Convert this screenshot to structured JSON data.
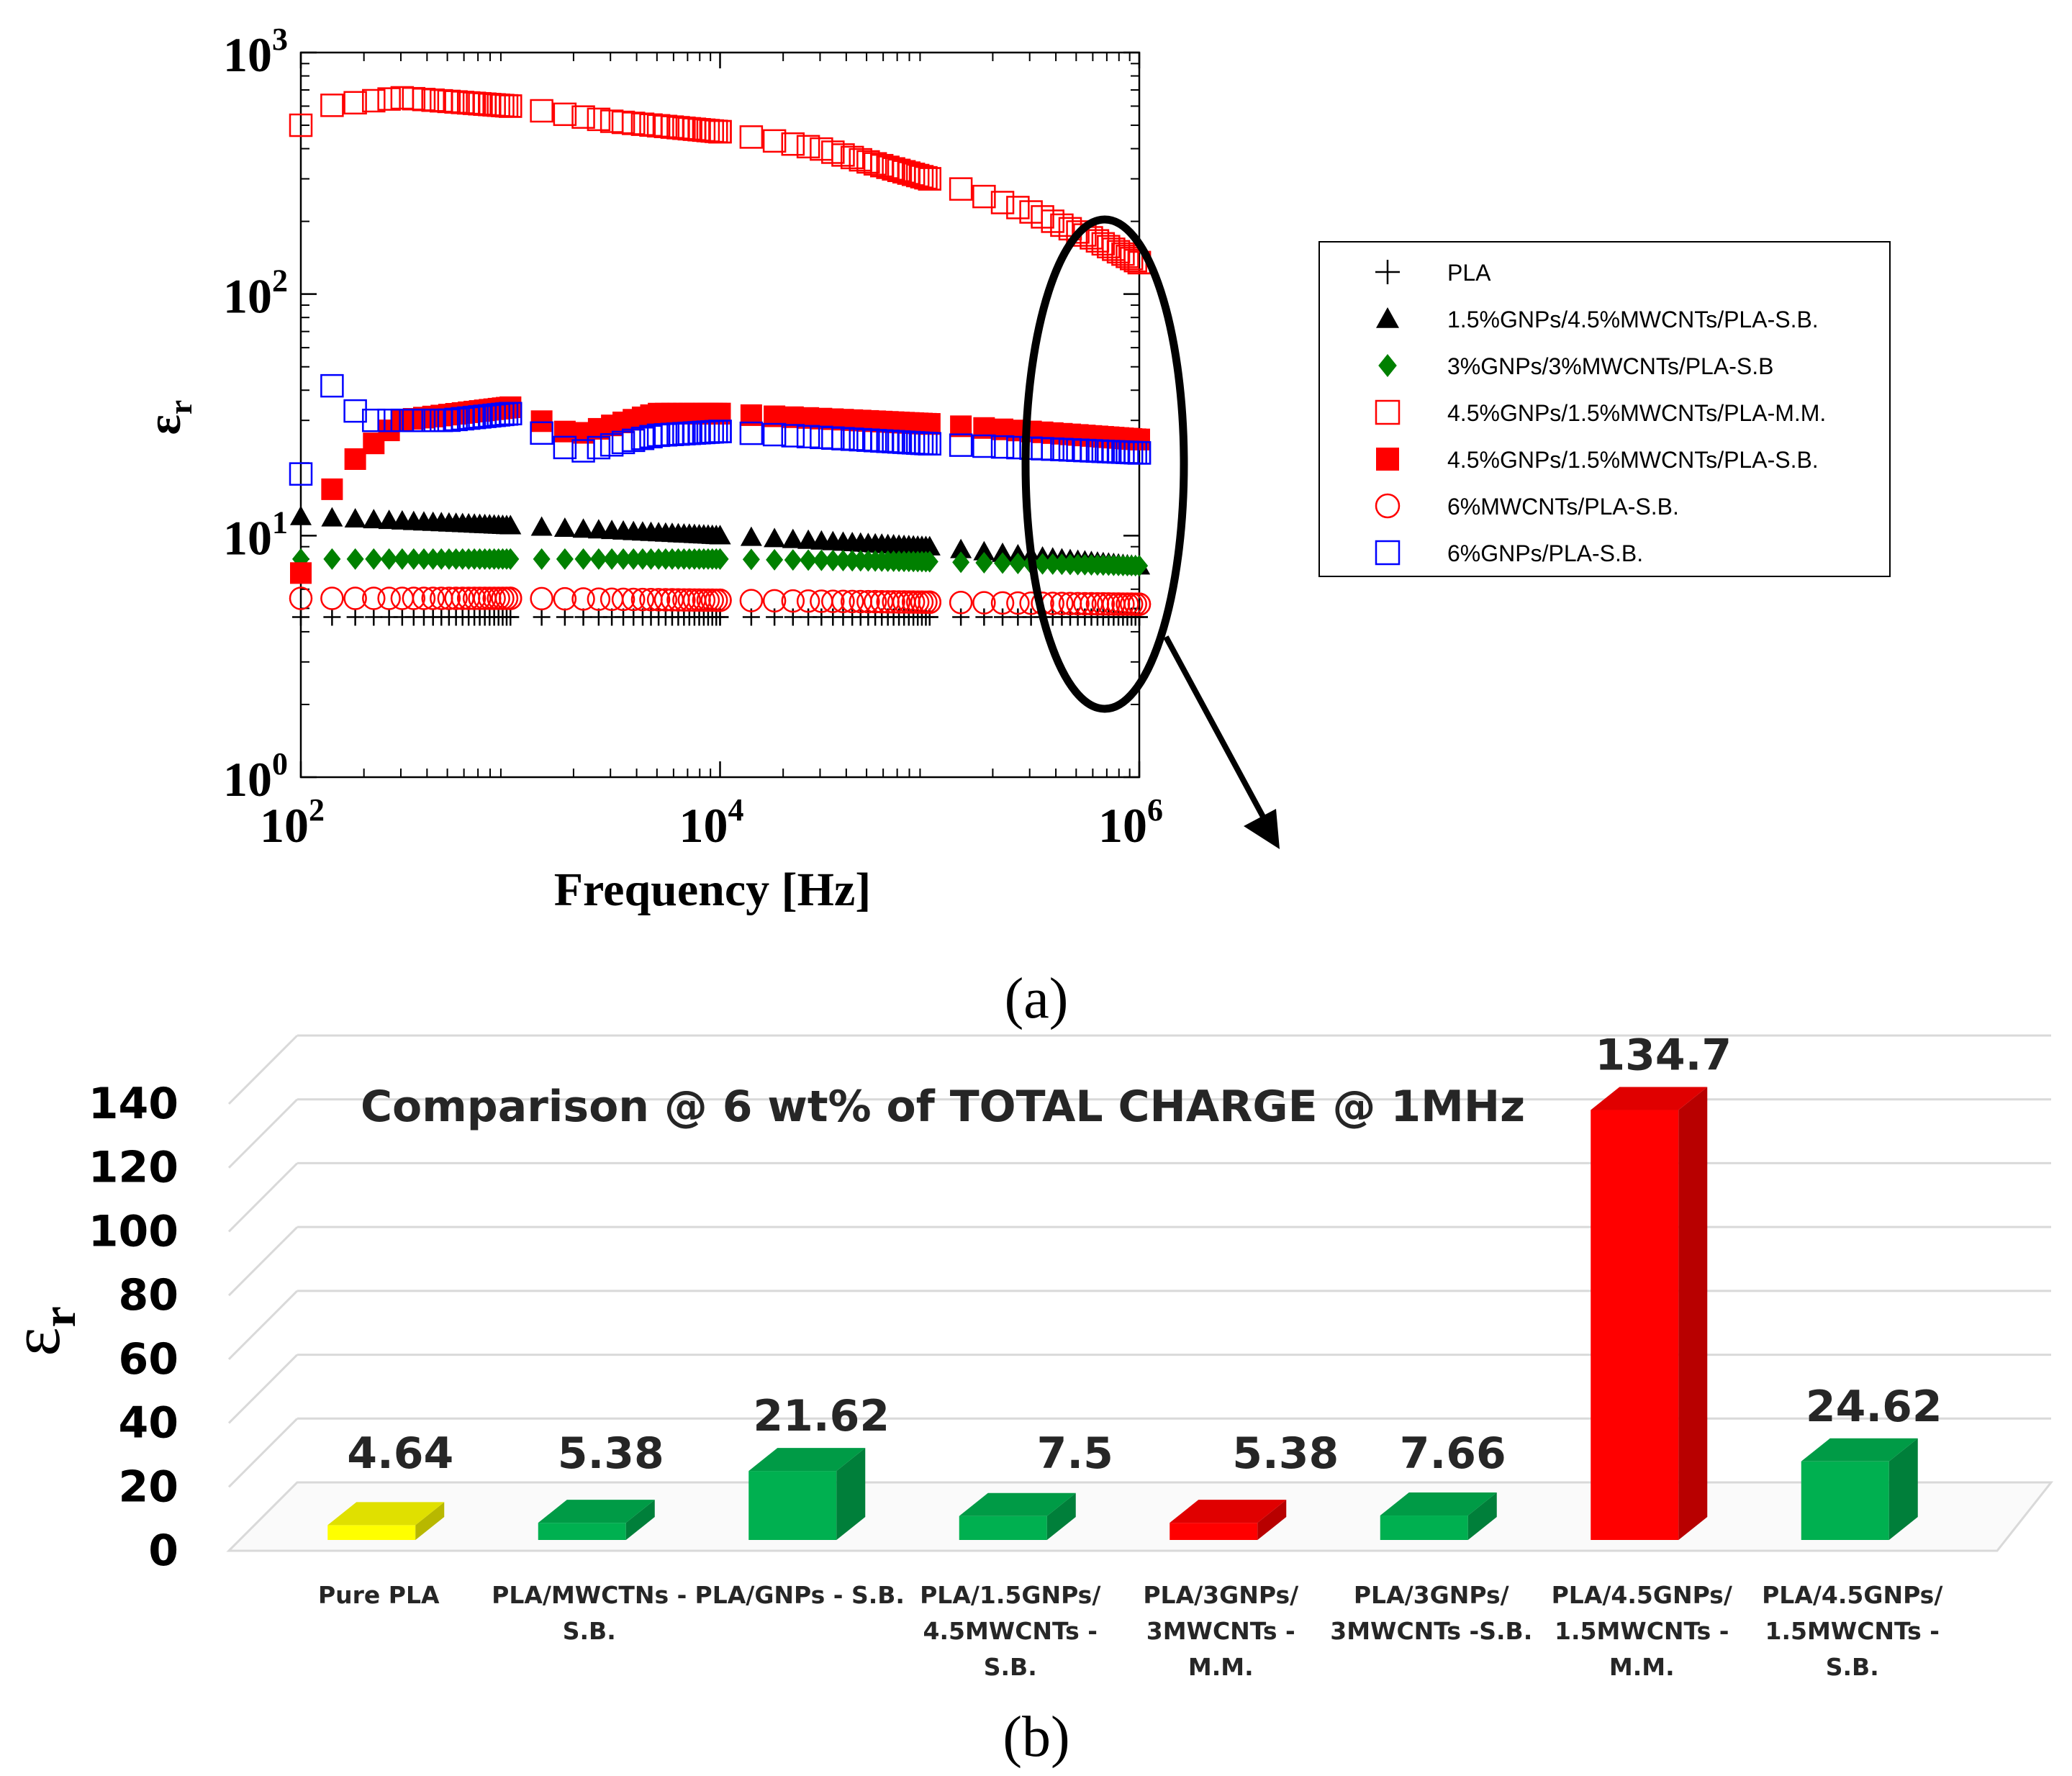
{
  "chart_data": [
    {
      "type": "scatter",
      "panel_label": "(a)",
      "xlabel": "Frequency [Hz]",
      "ylabel": "εr",
      "ylabel_main": "ε",
      "ylabel_sub": "r",
      "x_scale": "log",
      "y_scale": "log",
      "xlim": [
        100,
        1000000
      ],
      "ylim": [
        1,
        1000
      ],
      "x_ticks": [
        {
          "value": 100,
          "base": "10",
          "exp": "2"
        },
        {
          "value": 10000,
          "base": "10",
          "exp": "4"
        },
        {
          "value": 1000000,
          "base": "10",
          "exp": "6"
        }
      ],
      "y_ticks": [
        {
          "value": 1,
          "base": "10",
          "exp": "0"
        },
        {
          "value": 10,
          "base": "10",
          "exp": "1"
        },
        {
          "value": 100,
          "base": "10",
          "exp": "2"
        },
        {
          "value": 1000,
          "base": "10",
          "exp": "3"
        }
      ],
      "grid": false,
      "legend_position": "right",
      "annotation": "ellipse around the 10^5–10^6 Hz region with an arrow pointing to panel (b)",
      "series": [
        {
          "name": "PLA",
          "marker": "plus",
          "color": "#000000",
          "x": [
            100,
            1000,
            10000,
            100000,
            1000000
          ],
          "y": [
            4.6,
            4.6,
            4.6,
            4.6,
            4.6
          ]
        },
        {
          "name": "1.5%GNPs/4.5%MWCNTs/PLA-S.B.",
          "marker": "triangle-filled",
          "color": "#000000",
          "x": [
            100,
            1000,
            10000,
            100000,
            1000000
          ],
          "y": [
            12,
            11,
            10,
            9,
            7.5
          ]
        },
        {
          "name": "3%GNPs/3%MWCNTs/PLA-S.B",
          "marker": "diamond-filled",
          "color": "#008000",
          "x": [
            100,
            1000,
            10000,
            100000,
            1000000
          ],
          "y": [
            8,
            8,
            8,
            7.8,
            7.5
          ]
        },
        {
          "name": "4.5%GNPs/1.5%MWCNTs/PLA-M.M.",
          "marker": "square-open",
          "color": "#ff0000",
          "x": [
            100,
            130,
            300,
            1000,
            3000,
            10000,
            30000,
            100000,
            300000,
            600000,
            1000000
          ],
          "y": [
            500,
            600,
            650,
            600,
            520,
            470,
            400,
            300,
            220,
            170,
            135
          ]
        },
        {
          "name": "4.5%GNPs/1.5%MWCNTs/PLA-S.B.",
          "marker": "square-filled",
          "color": "#ff0000",
          "x": [
            100,
            150,
            300,
            1000,
            2000,
            5000,
            10000,
            100000,
            1000000
          ],
          "y": [
            7,
            18,
            30,
            34,
            26,
            32,
            32,
            29,
            25
          ]
        },
        {
          "name": "6%MWCNTs/PLA-S.B.",
          "marker": "circle-open",
          "color": "#ff0000",
          "x": [
            100,
            1000,
            10000,
            100000,
            1000000
          ],
          "y": [
            5.5,
            5.5,
            5.4,
            5.3,
            5.2
          ]
        },
        {
          "name": "6%GNPs/PLA-S.B.",
          "marker": "square-open",
          "color": "#0000ff",
          "x": [
            100,
            130,
            200,
            500,
            1000,
            2000,
            5000,
            10000,
            100000,
            1000000
          ],
          "y": [
            18,
            45,
            30,
            30,
            32,
            22,
            26,
            27,
            24,
            22
          ]
        }
      ]
    },
    {
      "type": "bar",
      "panel_label": "(b)",
      "title": "Comparison @ 6 wt% of TOTAL CHARGE  @ 1MHz",
      "ylabel": "εr",
      "ylabel_main": "ε",
      "ylabel_sub": "r",
      "ylim": [
        0,
        140
      ],
      "y_ticks": [
        0,
        20,
        40,
        60,
        80,
        100,
        120,
        140
      ],
      "style": "3d-columns",
      "grid": true,
      "categories": [
        "Pure PLA",
        "PLA/MWCTNs - S.B.",
        "PLA/GNPs - S.B.",
        "PLA/1.5GNPs/ 4.5MWCNTs - S.B.",
        "PLA/3GNPs/ 3MWCNTs - M.M.",
        "PLA/3GNPs/ 3MWCNTs -S.B.",
        "PLA/4.5GNPs/ 1.5MWCNTs - M.M.",
        "PLA/4.5GNPs/ 1.5MWCNTs - S.B."
      ],
      "category_lines": [
        [
          "Pure PLA"
        ],
        [
          "PLA/MWCTNs -",
          "S.B."
        ],
        [
          "PLA/GNPs - S.B."
        ],
        [
          "PLA/1.5GNPs/",
          "4.5MWCNTs -",
          "S.B."
        ],
        [
          "PLA/3GNPs/",
          "3MWCNTs -",
          "M.M."
        ],
        [
          "PLA/3GNPs/",
          "3MWCNTs -S.B."
        ],
        [
          "PLA/4.5GNPs/",
          "1.5MWCNTs -",
          "M.M."
        ],
        [
          "PLA/4.5GNPs/",
          "1.5MWCNTs -",
          "S.B."
        ]
      ],
      "values": [
        4.64,
        5.38,
        21.62,
        7.5,
        5.38,
        7.66,
        134.7,
        24.62
      ],
      "value_labels": [
        "4.64",
        "5.38",
        "21.62",
        "7.5",
        "5.38",
        "7.66",
        "134.7",
        "24.62"
      ],
      "bar_colors": [
        "#ffff00",
        "#00b050",
        "#00b050",
        "#00b050",
        "#ff0000",
        "#00b050",
        "#ff0000",
        "#00b050"
      ]
    }
  ]
}
